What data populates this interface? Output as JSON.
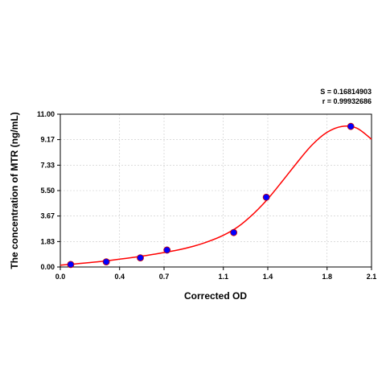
{
  "chart_data": {
    "type": "scatter",
    "title": "",
    "xlabel": "Corrected OD",
    "ylabel": "The concentration of MTR (ng/mL)",
    "xlim": [
      0.0,
      2.1
    ],
    "ylim": [
      0.0,
      11.0
    ],
    "x_ticks": [
      "0.0",
      "0.4",
      "0.7",
      "1.1",
      "1.4",
      "1.8",
      "2.1"
    ],
    "y_ticks": [
      "0.00",
      "1.83",
      "3.67",
      "5.50",
      "7.33",
      "9.17",
      "11.00"
    ],
    "grid": true,
    "stats": [
      "S = 0.16814903",
      "r = 0.99932686"
    ],
    "points": {
      "x": [
        0.07,
        0.31,
        0.54,
        0.72,
        1.17,
        1.39,
        1.96
      ],
      "y": [
        0.18,
        0.37,
        0.66,
        1.22,
        2.48,
        5.02,
        10.12
      ]
    },
    "curve": {
      "x": [
        0.0,
        0.1,
        0.2,
        0.3,
        0.4,
        0.5,
        0.6,
        0.7,
        0.8,
        0.9,
        1.0,
        1.1,
        1.2,
        1.3,
        1.4,
        1.5,
        1.6,
        1.7,
        1.8,
        1.9,
        2.0,
        2.1
      ],
      "y": [
        0.13,
        0.22,
        0.32,
        0.43,
        0.56,
        0.7,
        0.86,
        1.04,
        1.24,
        1.5,
        1.84,
        2.28,
        2.9,
        3.8,
        4.9,
        6.2,
        7.55,
        8.8,
        9.7,
        10.12,
        10.0,
        9.2
      ]
    },
    "colors": {
      "curve": "#ff0000",
      "point": "#0000ff",
      "point_edge": "#cc0000",
      "grid": "#c8c8c8"
    }
  }
}
